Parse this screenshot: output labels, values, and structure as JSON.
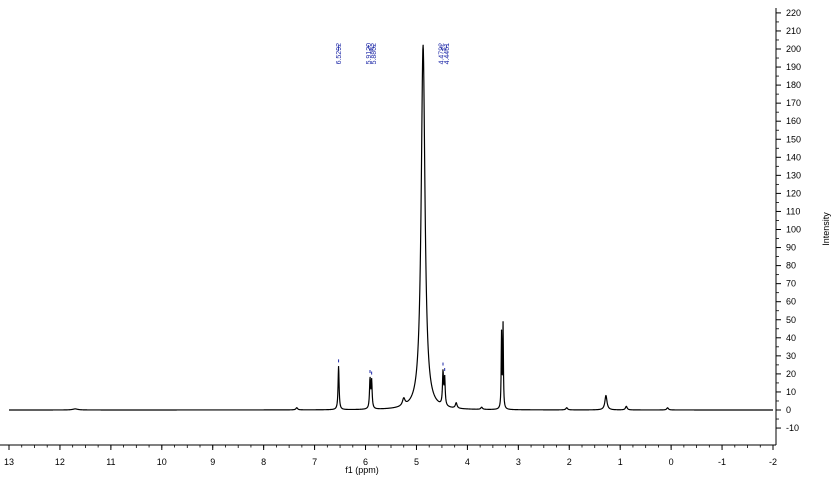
{
  "chart_data": {
    "type": "line",
    "title": "",
    "xlabel": "f1 (ppm)",
    "ylabel": "Intensity",
    "x_reversed": true,
    "xlim": [
      13,
      -2
    ],
    "ylim": [
      -17,
      223
    ],
    "x_ticks": [
      13,
      12,
      11,
      10,
      9,
      8,
      7,
      6,
      5,
      4,
      3,
      2,
      1,
      0,
      -1,
      -2
    ],
    "x_tick_labels": [
      "13",
      "12",
      "11",
      "10",
      "9",
      "8",
      "7",
      "6",
      "5",
      "4",
      "3",
      "2",
      "1",
      "0",
      "-1",
      "-2"
    ],
    "y_ticks": [
      -10,
      0,
      10,
      20,
      30,
      40,
      50,
      60,
      70,
      80,
      90,
      100,
      110,
      120,
      130,
      140,
      150,
      160,
      170,
      180,
      190,
      200,
      210,
      220
    ],
    "y_tick_labels": [
      "-10",
      "0",
      "10",
      "20",
      "30",
      "40",
      "50",
      "60",
      "70",
      "80",
      "90",
      "100",
      "110",
      "120",
      "130",
      "140",
      "150",
      "160",
      "170",
      "180",
      "190",
      "200",
      "210",
      "220"
    ],
    "grid": false,
    "baseline": 0,
    "peaks": [
      {
        "ppm": 11.7,
        "height": 0.6,
        "width": 0.06
      },
      {
        "ppm": 7.35,
        "height": 1.2,
        "width": 0.02
      },
      {
        "ppm": 6.5292,
        "height": 24,
        "width": 0.012
      },
      {
        "ppm": 5.912,
        "height": 16,
        "width": 0.012
      },
      {
        "ppm": 5.8802,
        "height": 15,
        "width": 0.012
      },
      {
        "ppm": 5.25,
        "height": 4,
        "width": 0.03
      },
      {
        "ppm": 4.87,
        "height": 202,
        "width": 0.045
      },
      {
        "ppm": 4.4792,
        "height": 18,
        "width": 0.012
      },
      {
        "ppm": 4.4461,
        "height": 15,
        "width": 0.012
      },
      {
        "ppm": 4.22,
        "height": 3,
        "width": 0.02
      },
      {
        "ppm": 3.72,
        "height": 1.2,
        "width": 0.02
      },
      {
        "ppm": 3.33,
        "height": 41,
        "width": 0.008
      },
      {
        "ppm": 3.3,
        "height": 46,
        "width": 0.008
      },
      {
        "ppm": 2.05,
        "height": 1.2,
        "width": 0.02
      },
      {
        "ppm": 1.28,
        "height": 8,
        "width": 0.025
      },
      {
        "ppm": 0.88,
        "height": 2,
        "width": 0.02
      },
      {
        "ppm": 0.07,
        "height": 1.2,
        "width": 0.02
      }
    ],
    "peak_labels": [
      {
        "text": "6.5292",
        "ppm": 6.5292,
        "tip_ppm": 6.5292
      },
      {
        "text": "5.9120",
        "ppm": 5.94,
        "tip_ppm": 5.912
      },
      {
        "text": "5.8802",
        "ppm": 5.84,
        "tip_ppm": 5.8802
      },
      {
        "text": "4.4792",
        "ppm": 4.52,
        "tip_ppm": 4.4792
      },
      {
        "text": "4.4461",
        "ppm": 4.41,
        "tip_ppm": 4.4461
      }
    ],
    "colors": {
      "spectrum": "#000000",
      "peak_label": "#1f2aa8",
      "axis": "#000000"
    }
  }
}
